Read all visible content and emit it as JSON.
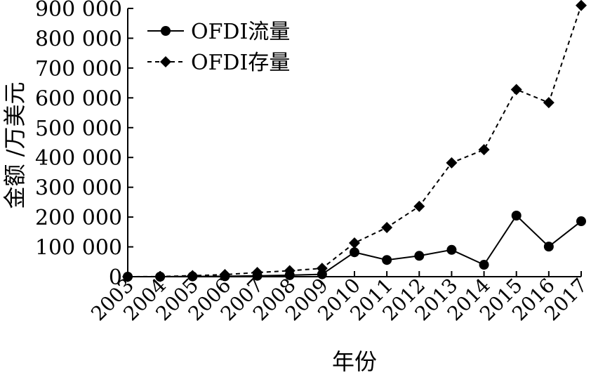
{
  "chart_data": {
    "type": "line",
    "xlabel": "年份",
    "ylabel": "金额 /万美元",
    "ylim": [
      0,
      900000
    ],
    "yticks": [
      {
        "value": 0,
        "label": "0"
      },
      {
        "value": 100000,
        "label": "100 000"
      },
      {
        "value": 200000,
        "label": "200 000"
      },
      {
        "value": 300000,
        "label": "300 000"
      },
      {
        "value": 400000,
        "label": "400 000"
      },
      {
        "value": 500000,
        "label": "500 000"
      },
      {
        "value": 600000,
        "label": "600 000"
      },
      {
        "value": 700000,
        "label": "700 000"
      },
      {
        "value": 800000,
        "label": "800 000"
      },
      {
        "value": 900000,
        "label": "900 000"
      }
    ],
    "categories": [
      "2003",
      "2004",
      "2005",
      "2006",
      "2007",
      "2008",
      "2009",
      "2010",
      "2011",
      "2012",
      "2013",
      "2014",
      "2015",
      "2016",
      "2017"
    ],
    "grid": false,
    "legend_position": "top-left",
    "series": [
      {
        "name": "OFDI流量",
        "marker": "circle",
        "line_style": "solid",
        "color": "#000000",
        "values": [
          0,
          0,
          1000,
          1500,
          3000,
          5000,
          8000,
          82000,
          56000,
          70000,
          90000,
          40000,
          205000,
          101000,
          186000
        ]
      },
      {
        "name": "OFDI存量",
        "marker": "diamond",
        "line_style": "dashed",
        "color": "#000000",
        "values": [
          0,
          500,
          3500,
          7000,
          14000,
          20000,
          28000,
          113000,
          165000,
          236000,
          382000,
          426000,
          628000,
          584000,
          910000
        ]
      }
    ]
  }
}
